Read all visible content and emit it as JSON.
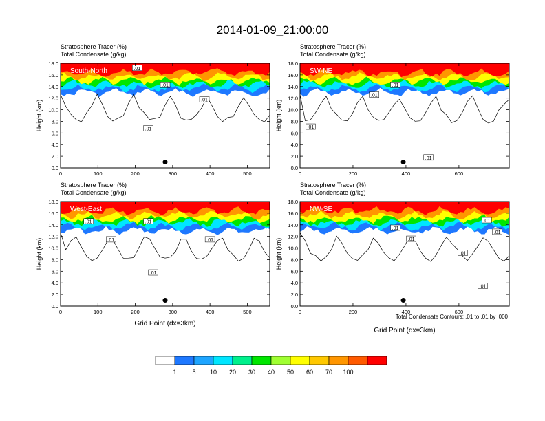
{
  "main_title": "2014-01-09_21:00:00",
  "colors": {
    "scale": [
      "#ffffff",
      "#1e78ff",
      "#1ea5ff",
      "#00e6ff",
      "#00f08c",
      "#00e600",
      "#a0ff32",
      "#ffff00",
      "#ffc800",
      "#ff9600",
      "#ff5a00",
      "#ff0000"
    ]
  },
  "colorbar": {
    "labels": [
      "1",
      "5",
      "10",
      "20",
      "30",
      "40",
      "50",
      "60",
      "70",
      "100"
    ]
  },
  "contour_note": "Total Condensate Contours: .01 to .01 by .000",
  "chart_data": [
    {
      "type": "heatmap",
      "name": "South-North",
      "title_line1": "Stratosphere Tracer   (%)",
      "title_line2": "Total Condensate   (g/kg)",
      "panel_label": "South-North",
      "ylabel": "Height (km)",
      "xlabel": "",
      "xlim": [
        0,
        560
      ],
      "ylim": [
        0,
        18
      ],
      "xticks": [
        "0",
        "100",
        "200",
        "300",
        "400",
        "500"
      ],
      "yticks": [
        "0.0",
        "2.0",
        "4.0",
        "6.0",
        "8.0",
        "10.0",
        "12.0",
        "14.0",
        "16.0",
        "18.0"
      ],
      "marker": {
        "x": 280,
        "y": 1.0
      },
      "contour_labels": [
        {
          "x": 205,
          "y": 17.2,
          "text": ".01"
        },
        {
          "x": 280,
          "y": 14.3,
          "text": ".01"
        },
        {
          "x": 385,
          "y": 11.8,
          "text": ".01"
        },
        {
          "x": 235,
          "y": 6.8,
          "text": ".01"
        }
      ]
    },
    {
      "type": "heatmap",
      "name": "SW-NE",
      "title_line1": "Stratosphere Tracer   (%)",
      "title_line2": "Total Condensate   (g/kg)",
      "panel_label": "SW-NE",
      "ylabel": "Height (km)",
      "xlabel": "",
      "xlim": [
        0,
        790
      ],
      "ylim": [
        0,
        18
      ],
      "xticks": [
        "0",
        "200",
        "400",
        "600"
      ],
      "yticks": [
        "0.0",
        "2.0",
        "4.0",
        "6.0",
        "8.0",
        "10.0",
        "12.0",
        "14.0",
        "16.0",
        "18.0"
      ],
      "marker": {
        "x": 390,
        "y": 1.0
      },
      "contour_labels": [
        {
          "x": 360,
          "y": 14.3,
          "text": ".01"
        },
        {
          "x": 280,
          "y": 12.6,
          "text": ".01"
        },
        {
          "x": 40,
          "y": 7.1,
          "text": ".01"
        },
        {
          "x": 485,
          "y": 1.8,
          "text": ".01"
        }
      ]
    },
    {
      "type": "heatmap",
      "name": "West-East",
      "title_line1": "Stratosphere Tracer   (%)",
      "title_line2": "Total Condensate   (g/kg)",
      "panel_label": "West-East",
      "ylabel": "Height (km)",
      "xlabel": "Grid Point (dx=3km)",
      "xlim": [
        0,
        560
      ],
      "ylim": [
        0,
        18
      ],
      "xticks": [
        "0",
        "100",
        "200",
        "300",
        "400",
        "500"
      ],
      "yticks": [
        "0.0",
        "2.0",
        "4.0",
        "6.0",
        "8.0",
        "10.0",
        "12.0",
        "14.0",
        "16.0",
        "18.0"
      ],
      "marker": {
        "x": 280,
        "y": 1.0
      },
      "contour_labels": [
        {
          "x": 75,
          "y": 14.6,
          "text": ".01"
        },
        {
          "x": 235,
          "y": 14.6,
          "text": ".01"
        },
        {
          "x": 135,
          "y": 11.5,
          "text": ".01"
        },
        {
          "x": 400,
          "y": 11.5,
          "text": ".01"
        },
        {
          "x": 248,
          "y": 5.8,
          "text": ".01"
        }
      ]
    },
    {
      "type": "heatmap",
      "name": "NW-SE",
      "title_line1": "Stratosphere Tracer   (%)",
      "title_line2": "Total Condensate   (g/kg)",
      "panel_label": "NW-SE",
      "ylabel": "Height (km)",
      "xlabel": "Grid Point (dx=3km)",
      "xlim": [
        0,
        790
      ],
      "ylim": [
        0,
        18
      ],
      "xticks": [
        "0",
        "200",
        "400",
        "600"
      ],
      "yticks": [
        "0.0",
        "2.0",
        "4.0",
        "6.0",
        "8.0",
        "10.0",
        "12.0",
        "14.0",
        "16.0",
        "18.0"
      ],
      "marker": {
        "x": 390,
        "y": 1.0
      },
      "contour_labels": [
        {
          "x": 705,
          "y": 14.8,
          "text": ".01"
        },
        {
          "x": 360,
          "y": 13.5,
          "text": ".01"
        },
        {
          "x": 745,
          "y": 12.8,
          "text": ".01"
        },
        {
          "x": 420,
          "y": 11.6,
          "text": ".01"
        },
        {
          "x": 615,
          "y": 9.2,
          "text": ".01"
        },
        {
          "x": 690,
          "y": 3.5,
          "text": ".01"
        }
      ]
    }
  ]
}
